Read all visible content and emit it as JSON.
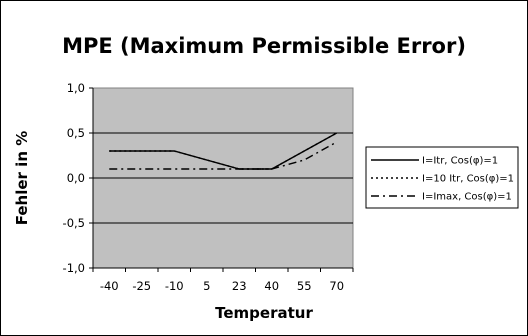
{
  "chart_data": {
    "type": "line",
    "title": "MPE (Maximum Permissible Error)",
    "xlabel": "Temperatur",
    "ylabel": "Fehler in %",
    "categories": [
      "-40",
      "-25",
      "-10",
      "5",
      "23",
      "40",
      "55",
      "70"
    ],
    "ylim": [
      -1.0,
      1.0
    ],
    "yticks": [
      "1,0",
      "0,5",
      "0,0",
      "-0,5",
      "-1,0"
    ],
    "grid": true,
    "legend_position": "right",
    "plot_background": "#c0c0c0",
    "series": [
      {
        "name": "I=Itr, Cos(φ)=1",
        "x": [
          -40,
          -10,
          23,
          40,
          70
        ],
        "values": [
          0.3,
          0.3,
          0.1,
          0.1,
          0.5
        ],
        "dash": "solid"
      },
      {
        "name": "I=10 Itr, Cos(φ)=1",
        "x": [
          -40,
          -10,
          23,
          40,
          70
        ],
        "values": [
          0.3,
          0.3,
          0.1,
          0.1,
          0.5
        ],
        "dash": "dotted"
      },
      {
        "name": "I=Imax, Cos(φ)=1",
        "x": [
          -40,
          23,
          40,
          55,
          70
        ],
        "values": [
          0.1,
          0.1,
          0.1,
          0.2,
          0.4
        ],
        "dash": "dashdot"
      }
    ]
  }
}
